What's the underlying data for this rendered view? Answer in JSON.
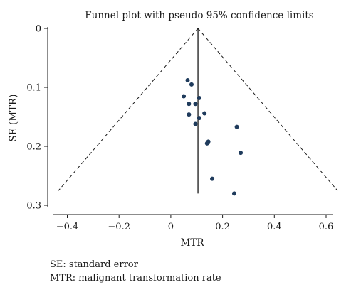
{
  "chart_data": {
    "type": "scatter",
    "title": "Funnel plot with pseudo 95% confidence limits",
    "xlabel": "MTR",
    "ylabel": "SE (MTR)",
    "xlim": [
      -0.45,
      0.65
    ],
    "ylim": [
      0,
      0.3
    ],
    "y_inverted": true,
    "xticks": [
      -0.4,
      -0.2,
      0,
      0.2,
      0.4,
      0.6
    ],
    "xtick_labels": [
      "−0.4",
      "−0.2",
      "0",
      "0.2",
      "0.4",
      "0.6"
    ],
    "yticks": [
      0,
      0.1,
      0.2,
      0.3
    ],
    "ytick_labels": [
      "0",
      "0.1",
      "0.2",
      "0.3"
    ],
    "grid": false,
    "pooled_estimate": 0.105,
    "pooled_line_se_range": [
      0,
      0.28
    ],
    "funnel_limit_se": 0.275,
    "funnel_multiplier": 1.96,
    "point_color": "#1f3b5c",
    "points": [
      {
        "x": 0.065,
        "y": 0.088
      },
      {
        "x": 0.08,
        "y": 0.095
      },
      {
        "x": 0.05,
        "y": 0.115
      },
      {
        "x": 0.07,
        "y": 0.128
      },
      {
        "x": 0.095,
        "y": 0.128
      },
      {
        "x": 0.11,
        "y": 0.118
      },
      {
        "x": 0.07,
        "y": 0.146
      },
      {
        "x": 0.13,
        "y": 0.144
      },
      {
        "x": 0.11,
        "y": 0.152
      },
      {
        "x": 0.095,
        "y": 0.162
      },
      {
        "x": 0.255,
        "y": 0.167
      },
      {
        "x": 0.145,
        "y": 0.192
      },
      {
        "x": 0.14,
        "y": 0.195
      },
      {
        "x": 0.27,
        "y": 0.211
      },
      {
        "x": 0.16,
        "y": 0.255
      },
      {
        "x": 0.245,
        "y": 0.28
      }
    ]
  },
  "footnotes": [
    "SE: standard error",
    "MTR: malignant transformation rate"
  ]
}
